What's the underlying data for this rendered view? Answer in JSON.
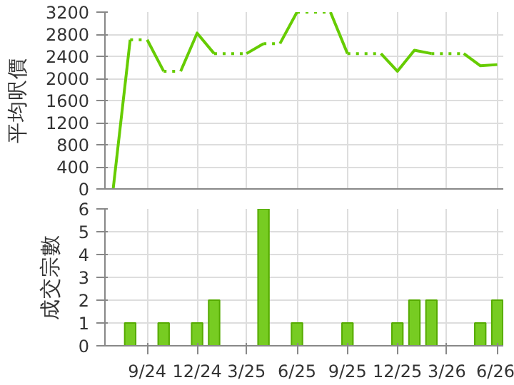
{
  "chart_data": [
    {
      "type": "line",
      "ylabel": "平均呎價",
      "xlim": [
        "2024-06-16",
        "2026-06-12"
      ],
      "xticks": [
        {
          "value": "2024-09",
          "label": null
        },
        {
          "value": "2024-12",
          "label": null
        },
        {
          "value": "2025-03",
          "label": null
        },
        {
          "value": "2025-06",
          "label": null
        },
        {
          "value": "2025-09",
          "label": null
        },
        {
          "value": "2025-12",
          "label": null
        },
        {
          "value": "2026-03",
          "label": null
        },
        {
          "value": "2026-06",
          "label": null
        }
      ],
      "ylim": [
        0,
        3200
      ],
      "yticks": [
        0,
        400,
        800,
        1200,
        1600,
        2000,
        2400,
        2800,
        3200
      ],
      "grid": true,
      "tick_labels": "y",
      "marker": "none",
      "series": [
        {
          "color": "#66cc00",
          "line_style": "solid",
          "x": [
            "2024-07",
            "2024-08"
          ],
          "values": [
            0,
            2700
          ]
        },
        {
          "color": "#66cc00",
          "line_style": "dotted",
          "x": [
            "2024-08",
            "2024-09"
          ],
          "values": [
            2700,
            2700
          ]
        },
        {
          "color": "#66cc00",
          "line_style": "solid",
          "x": [
            "2024-09",
            "2024-10"
          ],
          "values": [
            2700,
            2130
          ]
        },
        {
          "color": "#66cc00",
          "line_style": "dotted",
          "x": [
            "2024-10",
            "2024-11"
          ],
          "values": [
            2130,
            2130
          ]
        },
        {
          "color": "#66cc00",
          "line_style": "solid",
          "x": [
            "2024-11",
            "2024-12",
            "2025-01"
          ],
          "values": [
            2130,
            2820,
            2450
          ]
        },
        {
          "color": "#66cc00",
          "line_style": "dotted",
          "x": [
            "2025-01",
            "2025-02",
            "2025-03"
          ],
          "values": [
            2450,
            2450,
            2450
          ]
        },
        {
          "color": "#66cc00",
          "line_style": "solid",
          "x": [
            "2025-03",
            "2025-04"
          ],
          "values": [
            2450,
            2630
          ]
        },
        {
          "color": "#66cc00",
          "line_style": "dotted",
          "x": [
            "2025-04",
            "2025-05"
          ],
          "values": [
            2630,
            2630
          ]
        },
        {
          "color": "#66cc00",
          "line_style": "solid",
          "x": [
            "2025-05",
            "2025-06"
          ],
          "values": [
            2630,
            3200
          ]
        },
        {
          "color": "#66cc00",
          "line_style": "dotted",
          "x": [
            "2025-06",
            "2025-07",
            "2025-08"
          ],
          "values": [
            3200,
            3200,
            3200
          ]
        },
        {
          "color": "#66cc00",
          "line_style": "solid",
          "x": [
            "2025-08",
            "2025-09"
          ],
          "values": [
            3200,
            2450
          ]
        },
        {
          "color": "#66cc00",
          "line_style": "dotted",
          "x": [
            "2025-09",
            "2025-10",
            "2025-11"
          ],
          "values": [
            2450,
            2450,
            2450
          ]
        },
        {
          "color": "#66cc00",
          "line_style": "solid",
          "x": [
            "2025-11",
            "2025-12",
            "2026-01",
            "2026-02"
          ],
          "values": [
            2450,
            2130,
            2510,
            2450
          ]
        },
        {
          "color": "#66cc00",
          "line_style": "dotted",
          "x": [
            "2026-02",
            "2026-03",
            "2026-04"
          ],
          "values": [
            2450,
            2450,
            2450
          ]
        },
        {
          "color": "#66cc00",
          "line_style": "solid",
          "x": [
            "2026-04",
            "2026-05",
            "2026-06"
          ],
          "values": [
            2450,
            2230,
            2250
          ]
        }
      ]
    },
    {
      "type": "bar",
      "ylabel": "成交宗數",
      "xlim": [
        "2024-06-16",
        "2026-06-12"
      ],
      "xticks": [
        {
          "value": "2024-09",
          "label": "9/24"
        },
        {
          "value": "2024-12",
          "label": "12/24"
        },
        {
          "value": "2025-03",
          "label": "3/25"
        },
        {
          "value": "2025-06",
          "label": "6/25"
        },
        {
          "value": "2025-09",
          "label": "9/25"
        },
        {
          "value": "2025-12",
          "label": "12/25"
        },
        {
          "value": "2026-03",
          "label": "3/26"
        },
        {
          "value": "2026-06",
          "label": "6/26"
        }
      ],
      "ylim": [
        0,
        6
      ],
      "yticks": [
        0,
        1,
        2,
        3,
        4,
        5,
        6
      ],
      "grid": true,
      "x": [
        "2024-08",
        "2024-10",
        "2024-12",
        "2025-01",
        "2025-04",
        "2025-06",
        "2025-09",
        "2025-12",
        "2026-01",
        "2026-02",
        "2026-05",
        "2026-06"
      ],
      "values": [
        1,
        1,
        1,
        2,
        6,
        1,
        1,
        1,
        2,
        2,
        1,
        2
      ],
      "color": "#77cc22"
    }
  ]
}
